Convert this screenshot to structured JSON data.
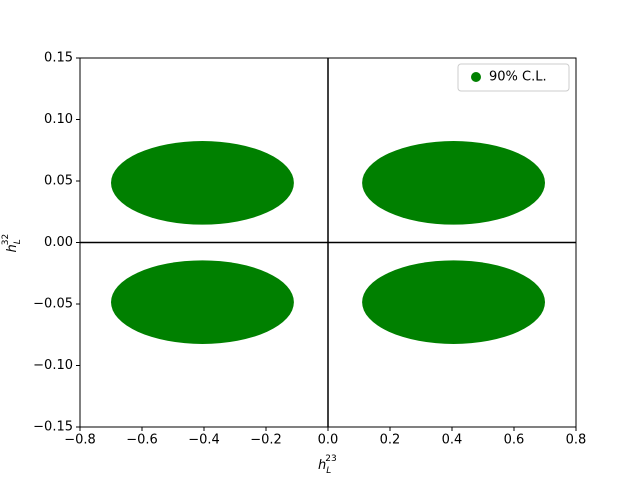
{
  "chart_data": {
    "type": "ellipse",
    "x_label": {
      "base": "h",
      "sub": "L",
      "sup": "23"
    },
    "y_label": {
      "base": "h",
      "sub": "L",
      "sup": "32"
    },
    "xlim": [
      -0.8,
      0.8
    ],
    "ylim": [
      -0.15,
      0.15
    ],
    "xticks": [
      {
        "value": -0.8,
        "label": "−0.8"
      },
      {
        "value": -0.6,
        "label": "−0.6"
      },
      {
        "value": -0.4,
        "label": "−0.4"
      },
      {
        "value": -0.2,
        "label": "−0.2"
      },
      {
        "value": 0,
        "label": "0.0"
      },
      0.2,
      0.4,
      0.6,
      0.8
    ],
    "yticks": [
      {
        "value": -0.15,
        "label": "−0.15"
      },
      {
        "value": -0.1,
        "label": "−0.10"
      },
      {
        "value": -0.05,
        "label": "−0.05"
      },
      {
        "value": 0,
        "label": "0.00"
      },
      0.05,
      {
        "value": 0.1,
        "label": "0.10"
      },
      0.15
    ],
    "hlines": [
      0
    ],
    "vlines": [
      0
    ],
    "legend": "upper right",
    "series": [
      {
        "name": "90% C.L.",
        "color": "#008000",
        "x": [
          -0.405,
          0.405,
          -0.405,
          0.405
        ],
        "values": [
          0.0485,
          0.0485,
          -0.0485,
          -0.0485
        ],
        "x_radius": [
          0.295,
          0.295,
          0.295,
          0.295
        ],
        "y_radius": [
          0.034,
          0.034,
          0.034,
          0.034
        ]
      }
    ]
  }
}
